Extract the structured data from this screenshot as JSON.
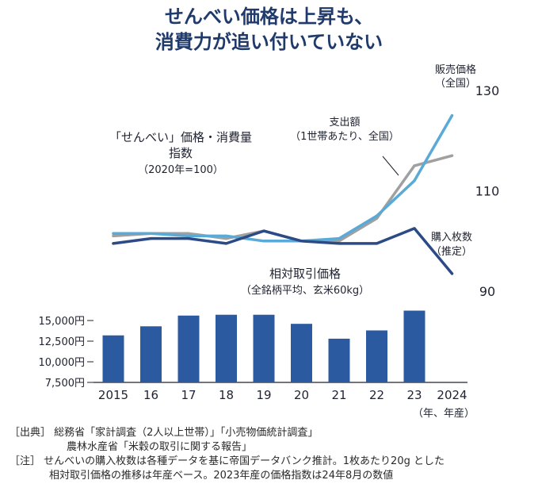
{
  "title": {
    "line1": "せんべい価格は上昇も、",
    "line2": "消費力が追い付いていない"
  },
  "top_chart": {
    "label_line1": "「せんべい」価格・消費量",
    "label_line2": "指数",
    "label_line3": "（2020年=100）",
    "series_labels": {
      "price": [
        "販売価格",
        "（全国）"
      ],
      "spending": [
        "支出額",
        "（1世帯あたり、全国）"
      ],
      "quantity": [
        "購入枚数",
        "（推定）"
      ]
    }
  },
  "bar_chart": {
    "label_line1": "相対取引価格",
    "label_line2": "（全銘柄平均、玄米60kg）"
  },
  "x_axis_unit": "（年、年産）",
  "notes": {
    "line1": "［出典］ 総務省「家計調査（2人以上世帯）」「小売物価統計調査」",
    "line2": "農林水産省「米穀の取引に関する報告」",
    "line3": "［注］ せんべいの購入枚数は各種データを基に帝国データバンク推計。1枚あたり20g とした",
    "line4": "相対取引価格の推移は年産ベース。2023年産の価格指数は24年8月の数値"
  },
  "colors": {
    "price": "#5aaad8",
    "spending": "#a0a0a0",
    "quantity": "#2c4a85",
    "bars": "#2c5aa0",
    "title": "#1f3a6b"
  },
  "chart_data": [
    {
      "type": "line",
      "title": "「せんべい」価格・消費量 指数（2020年=100）",
      "x": [
        "2015",
        "16",
        "17",
        "18",
        "19",
        "20",
        "21",
        "22",
        "23",
        "2024"
      ],
      "ylim": [
        90,
        130
      ],
      "yticks": [
        "130",
        "110",
        "90"
      ],
      "series": [
        {
          "name": "販売価格（全国）",
          "values": [
            101.5,
            101.5,
            101,
            101,
            100,
            100,
            100.5,
            105,
            112,
            125
          ]
        },
        {
          "name": "支出額（1世帯あたり、全国）",
          "values": [
            101,
            101.5,
            101.5,
            100.5,
            102,
            100,
            100,
            104.5,
            115,
            117
          ]
        },
        {
          "name": "購入枚数（推定）",
          "values": [
            99.5,
            100.5,
            100.5,
            99.5,
            102,
            100,
            99.5,
            99.5,
            102.5,
            93.5
          ]
        }
      ]
    },
    {
      "type": "bar",
      "title": "相対取引価格（全銘柄平均、玄米60kg）",
      "categories": [
        "2015",
        "16",
        "17",
        "18",
        "19",
        "20",
        "21",
        "22",
        "23",
        "2024"
      ],
      "values": [
        13200,
        14300,
        15600,
        15700,
        15700,
        14600,
        12800,
        13800,
        16200,
        null
      ],
      "ylim": [
        7500,
        16500
      ],
      "yticks": [
        "15,000円",
        "12,500円",
        "10,000円",
        "7,500円"
      ]
    }
  ]
}
